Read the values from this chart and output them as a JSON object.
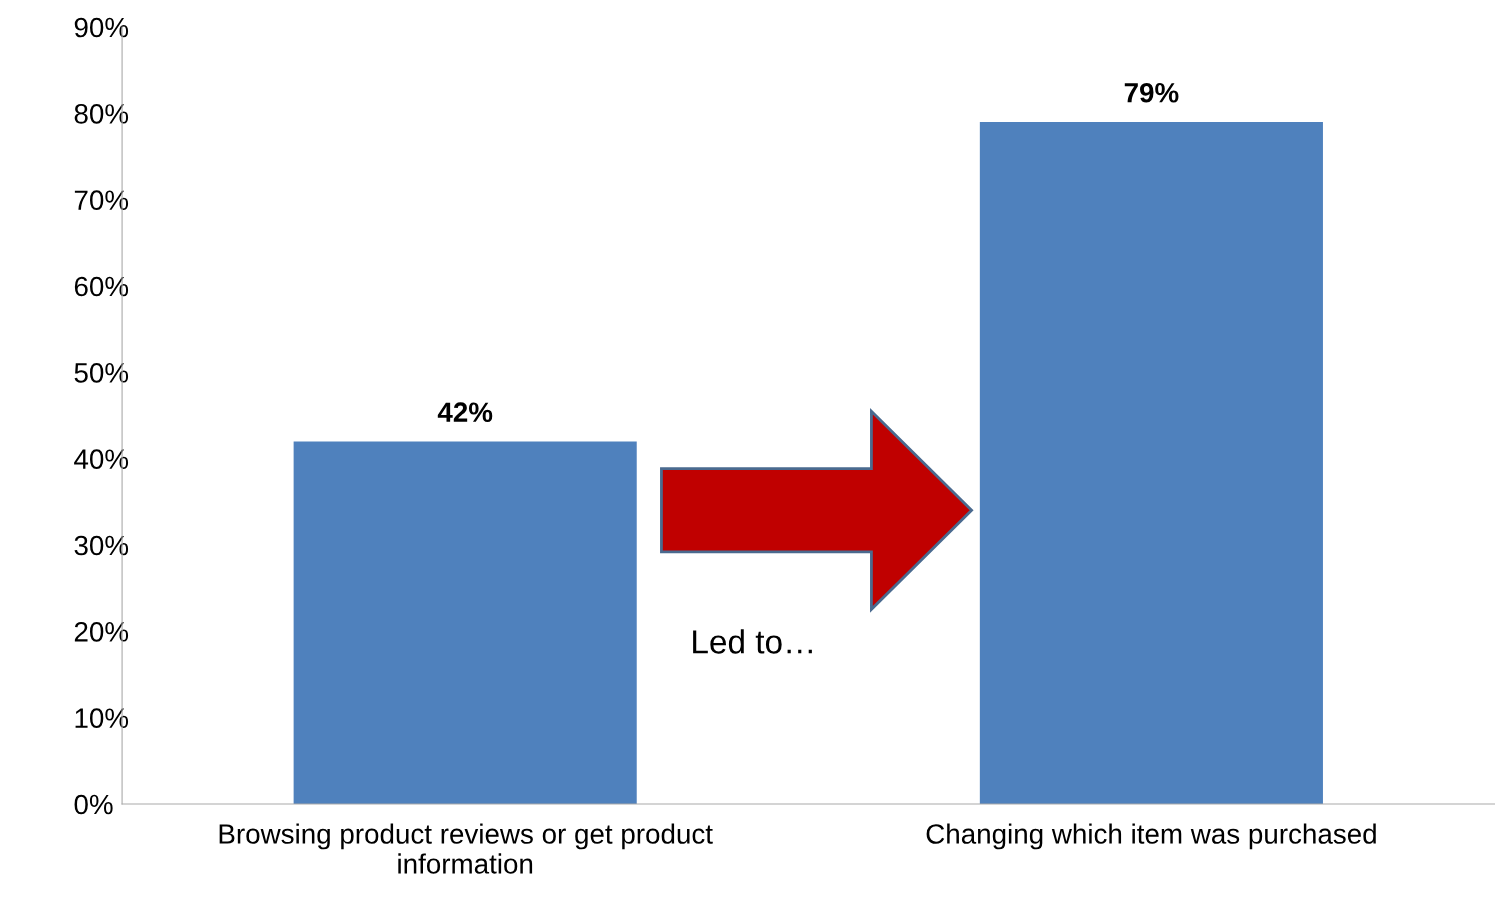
{
  "chart_data": {
    "type": "bar",
    "categories": [
      "Browsing product reviews or get product\ninformation",
      "Changing which item was purchased"
    ],
    "values": [
      42,
      79
    ],
    "color": "#4f81bd",
    "value_labels": [
      "42%",
      "79%"
    ],
    "ylim": [
      0,
      90
    ],
    "yticks": [
      {
        "value": 0,
        "label": "0%"
      },
      {
        "value": 10,
        "label": "10%"
      },
      {
        "value": 20,
        "label": "20%"
      },
      {
        "value": 30,
        "label": "30%"
      },
      {
        "value": 40,
        "label": "40%"
      },
      {
        "value": 50,
        "label": "50%"
      },
      {
        "value": 60,
        "label": "60%"
      },
      {
        "value": 70,
        "label": "70%"
      },
      {
        "value": 80,
        "label": "80%"
      },
      {
        "value": 90,
        "label": "90%"
      }
    ],
    "grid": false,
    "legend": false,
    "annotations": [
      "Led to…"
    ]
  }
}
